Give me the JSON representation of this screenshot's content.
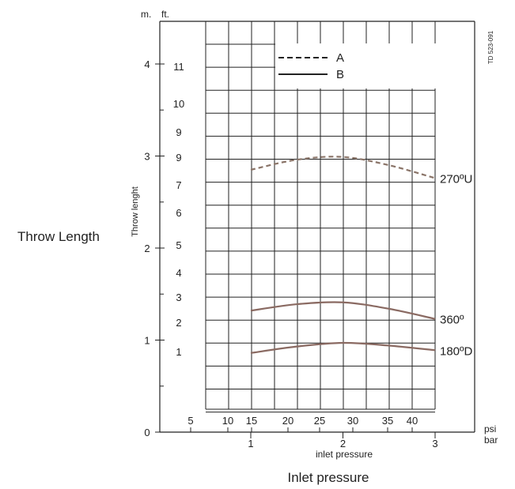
{
  "chart_data": {
    "type": "line",
    "side_title": "Throw Length",
    "y_axis_title": "Throw lenght",
    "x_axis_title": "inlet pressure",
    "bottom_title": "Inlet pressure",
    "doc_code": "TD 523-091",
    "y_unit_m": "m.",
    "y_unit_ft": "ft.",
    "x_unit_psi": "psi",
    "x_unit_bar": "bar",
    "m_ticks": [
      "0",
      "1",
      "2",
      "3",
      "4"
    ],
    "ft_ticks": [
      "1",
      "2",
      "3",
      "4",
      "5",
      "6",
      "7",
      "9",
      "9",
      "10",
      "11"
    ],
    "psi_ticks": [
      "5",
      "10",
      "15",
      "20",
      "25",
      "30",
      "35",
      "40"
    ],
    "bar_ticks": [
      "1",
      "2",
      "3"
    ],
    "xlim_bar": [
      0.5,
      3.0
    ],
    "ylim_m": [
      0,
      4.4
    ],
    "legend": [
      {
        "label": "A",
        "style": "dashed"
      },
      {
        "label": "B",
        "style": "solid"
      }
    ],
    "series": [
      {
        "name": "270ºU",
        "style": "dashed",
        "color": "#8a7468",
        "x": [
          1.0,
          1.5,
          2.0,
          2.5,
          3.0
        ],
        "y": [
          2.85,
          2.96,
          2.99,
          2.9,
          2.76
        ]
      },
      {
        "name": "360º",
        "style": "solid",
        "color": "#8a6a62",
        "x": [
          1.0,
          1.5,
          2.0,
          2.5,
          3.0
        ],
        "y": [
          1.32,
          1.39,
          1.41,
          1.34,
          1.23
        ]
      },
      {
        "name": "180ºD",
        "style": "solid",
        "color": "#8a6a62",
        "x": [
          1.0,
          1.5,
          2.0,
          2.5,
          3.0
        ],
        "y": [
          0.86,
          0.93,
          0.97,
          0.94,
          0.89
        ]
      }
    ],
    "grid": true
  }
}
